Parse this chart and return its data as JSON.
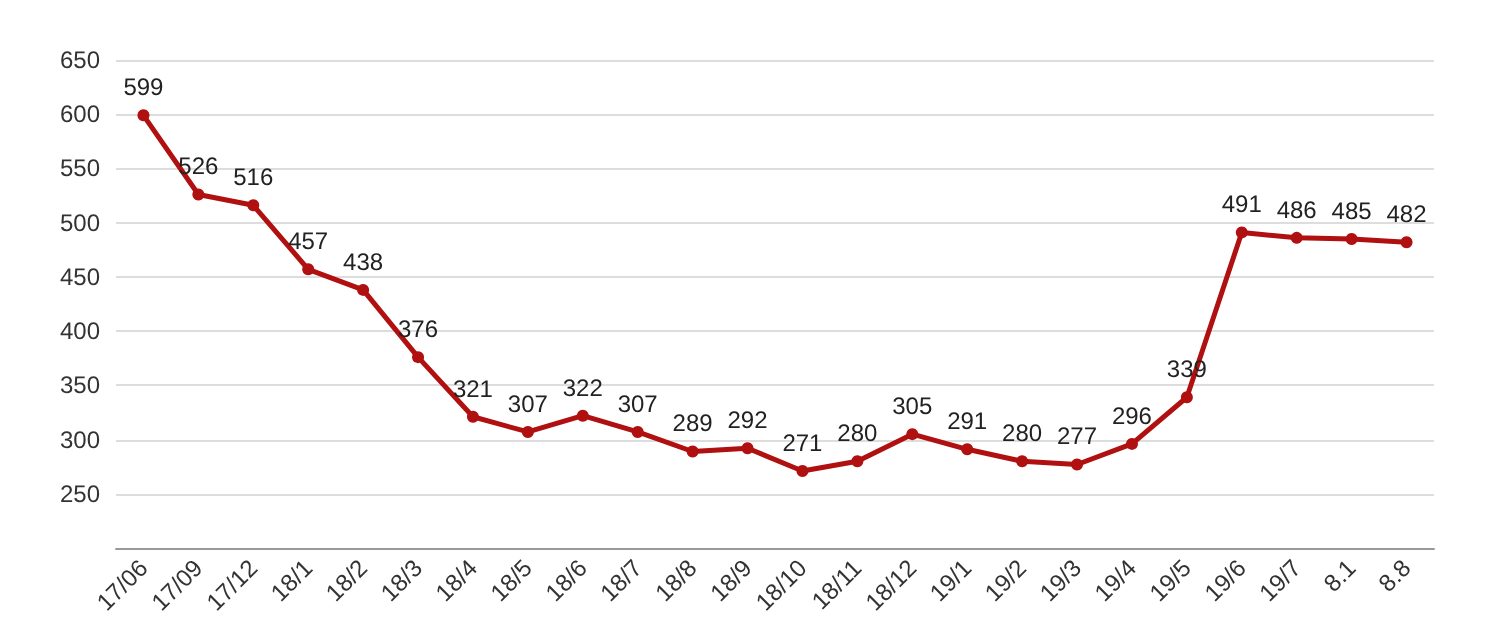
{
  "chart_data": {
    "type": "line",
    "categories": [
      "17/06",
      "17/09",
      "17/12",
      "18/1",
      "18/2",
      "18/3",
      "18/4",
      "18/5",
      "18/6",
      "18/7",
      "18/8",
      "18/9",
      "18/10",
      "18/11",
      "18/12",
      "19/1",
      "19/2",
      "19/3",
      "19/4",
      "19/5",
      "19/6",
      "19/7",
      "8.1",
      "8.8"
    ],
    "values": [
      599,
      526,
      516,
      457,
      438,
      376,
      321,
      307,
      322,
      307,
      289,
      292,
      271,
      280,
      305,
      291,
      280,
      277,
      296,
      339,
      491,
      486,
      485,
      482
    ],
    "color": "#b01010",
    "ylim": [
      200,
      650
    ],
    "yticks": [
      250,
      300,
      350,
      400,
      450,
      500,
      550,
      600,
      650
    ],
    "grid": "y",
    "data_labels": true,
    "marker": "circle",
    "line_style": "solid"
  }
}
